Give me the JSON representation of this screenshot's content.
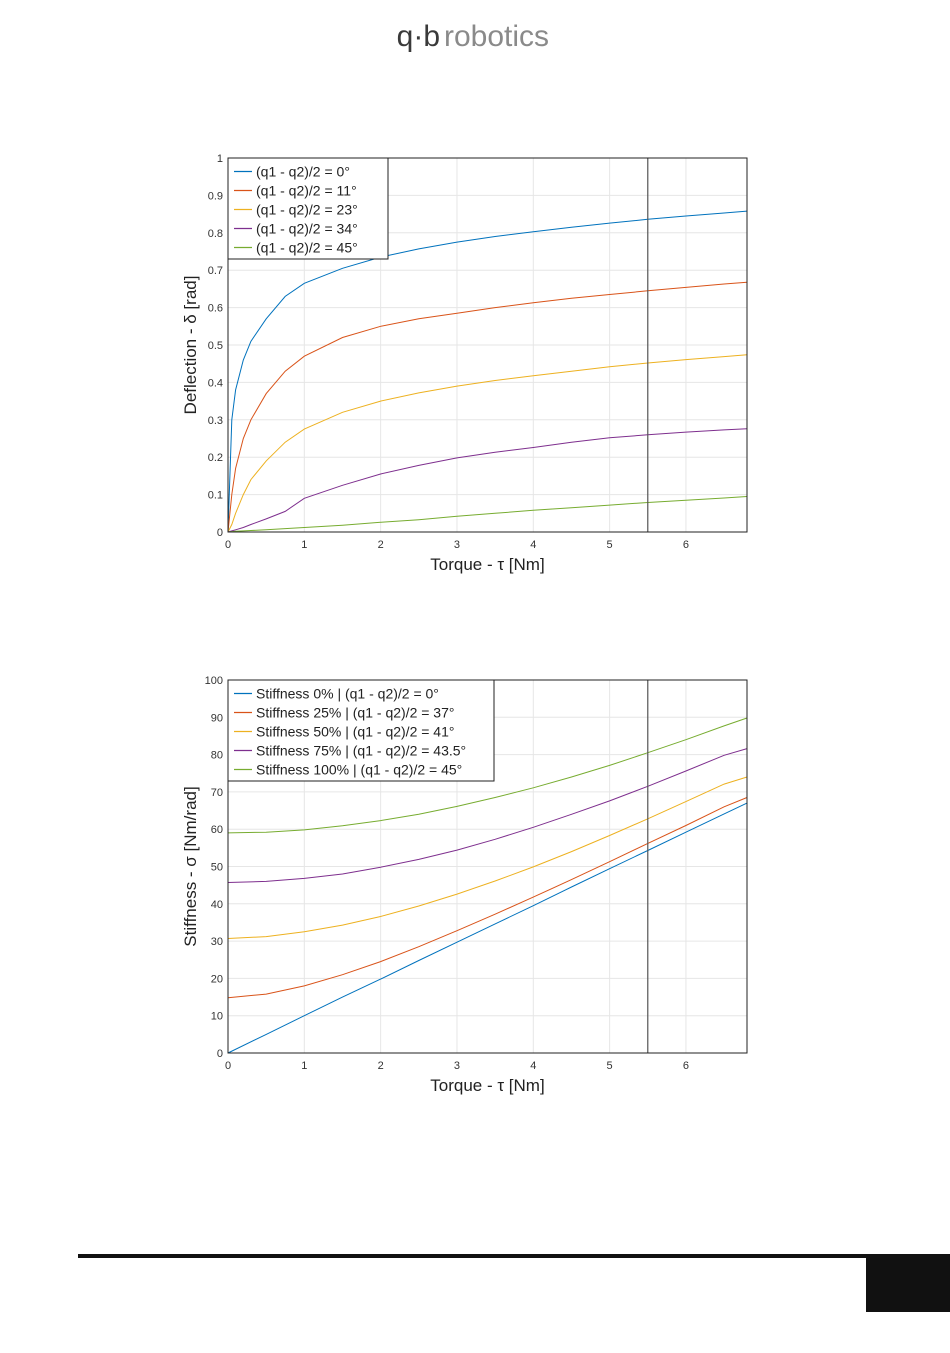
{
  "header": {
    "logo_mark": "q·b",
    "logo_text": "robotics"
  },
  "chart_data": [
    {
      "type": "line",
      "xlabel": "Torque - τ [Nm]",
      "ylabel": "Deflection - δ [rad]",
      "xlim": [
        0,
        6.8
      ],
      "ylim": [
        0,
        1
      ],
      "xticks": [
        0,
        1,
        2,
        3,
        4,
        5,
        6
      ],
      "yticks": [
        0,
        0.1,
        0.2,
        0.3,
        0.4,
        0.5,
        0.6,
        0.7,
        0.8,
        0.9,
        1
      ],
      "grid": true,
      "legend_position": "top-left",
      "vertical_line_x": 5.5,
      "x": [
        0,
        0.05,
        0.1,
        0.2,
        0.3,
        0.5,
        0.75,
        1,
        1.5,
        2,
        2.5,
        3,
        3.5,
        4,
        4.5,
        5,
        5.5,
        6,
        6.5,
        6.8
      ],
      "series": [
        {
          "name": "(q1 - q2)/2 = 0°",
          "color": "#0072BD",
          "values": [
            0,
            0.3,
            0.38,
            0.46,
            0.51,
            0.57,
            0.63,
            0.665,
            0.705,
            0.735,
            0.757,
            0.775,
            0.79,
            0.803,
            0.815,
            0.826,
            0.836,
            0.845,
            0.853,
            0.858
          ]
        },
        {
          "name": "(q1 - q2)/2 = 11°",
          "color": "#D95319",
          "values": [
            0,
            0.1,
            0.17,
            0.25,
            0.3,
            0.37,
            0.43,
            0.47,
            0.52,
            0.55,
            0.57,
            0.585,
            0.6,
            0.613,
            0.625,
            0.635,
            0.645,
            0.654,
            0.663,
            0.668
          ]
        },
        {
          "name": "(q1 - q2)/2 = 23°",
          "color": "#EDB120",
          "values": [
            0,
            0.02,
            0.05,
            0.1,
            0.14,
            0.19,
            0.24,
            0.275,
            0.32,
            0.35,
            0.372,
            0.39,
            0.405,
            0.418,
            0.43,
            0.442,
            0.452,
            0.461,
            0.469,
            0.474
          ]
        },
        {
          "name": "(q1 - q2)/2 = 34°",
          "color": "#7E2F8E",
          "values": [
            0,
            0.003,
            0.006,
            0.012,
            0.02,
            0.035,
            0.055,
            0.09,
            0.125,
            0.155,
            0.178,
            0.198,
            0.213,
            0.226,
            0.24,
            0.252,
            0.26,
            0.267,
            0.273,
            0.276
          ]
        },
        {
          "name": "(q1 - q2)/2 = 45°",
          "color": "#77AC30",
          "values": [
            0,
            0.001,
            0.002,
            0.003,
            0.004,
            0.006,
            0.009,
            0.012,
            0.018,
            0.026,
            0.033,
            0.042,
            0.05,
            0.058,
            0.065,
            0.072,
            0.079,
            0.085,
            0.091,
            0.095
          ]
        }
      ]
    },
    {
      "type": "line",
      "xlabel": "Torque - τ [Nm]",
      "ylabel": "Stiffness - σ [Nm/rad]",
      "xlim": [
        0,
        6.8
      ],
      "ylim": [
        0,
        100
      ],
      "xticks": [
        0,
        1,
        2,
        3,
        4,
        5,
        6
      ],
      "yticks": [
        0,
        10,
        20,
        30,
        40,
        50,
        60,
        70,
        80,
        90,
        100
      ],
      "grid": true,
      "legend_position": "top-left",
      "vertical_line_x": 5.5,
      "x": [
        0,
        0.5,
        1,
        1.5,
        2,
        2.5,
        3,
        3.5,
        4,
        4.5,
        5,
        5.5,
        6,
        6.5,
        6.8
      ],
      "series": [
        {
          "name": "Stiffness 0% | (q1 - q2)/2 = 0°",
          "color": "#0072BD",
          "values": [
            0,
            5,
            10,
            15,
            19.8,
            24.8,
            29.7,
            34.6,
            39.5,
            44.5,
            49.4,
            54.3,
            59.2,
            64.1,
            67
          ]
        },
        {
          "name": "Stiffness 25% | (q1 - q2)/2 = 37°",
          "color": "#D95319",
          "values": [
            14.8,
            15.8,
            18,
            21,
            24.5,
            28.5,
            32.8,
            37.2,
            41.8,
            46.5,
            51.3,
            56.2,
            61,
            66,
            68.5
          ]
        },
        {
          "name": "Stiffness 50% | (q1 - q2)/2 = 41°",
          "color": "#EDB120",
          "values": [
            30.7,
            31.2,
            32.5,
            34.3,
            36.6,
            39.4,
            42.6,
            46.1,
            49.9,
            54,
            58.3,
            62.8,
            67.4,
            72.1,
            74
          ]
        },
        {
          "name": "Stiffness 75% | (q1 - q2)/2 = 43.5°",
          "color": "#7E2F8E",
          "values": [
            45.7,
            46,
            46.8,
            48,
            49.8,
            51.9,
            54.4,
            57.3,
            60.5,
            64,
            67.6,
            71.5,
            75.6,
            79.8,
            81.6
          ]
        },
        {
          "name": "Stiffness 100% | (q1 - q2)/2 = 45°",
          "color": "#77AC30",
          "values": [
            59,
            59.2,
            59.8,
            60.9,
            62.3,
            64,
            66.1,
            68.5,
            71.1,
            74,
            77.1,
            80.5,
            84,
            87.7,
            89.8
          ]
        }
      ]
    }
  ]
}
